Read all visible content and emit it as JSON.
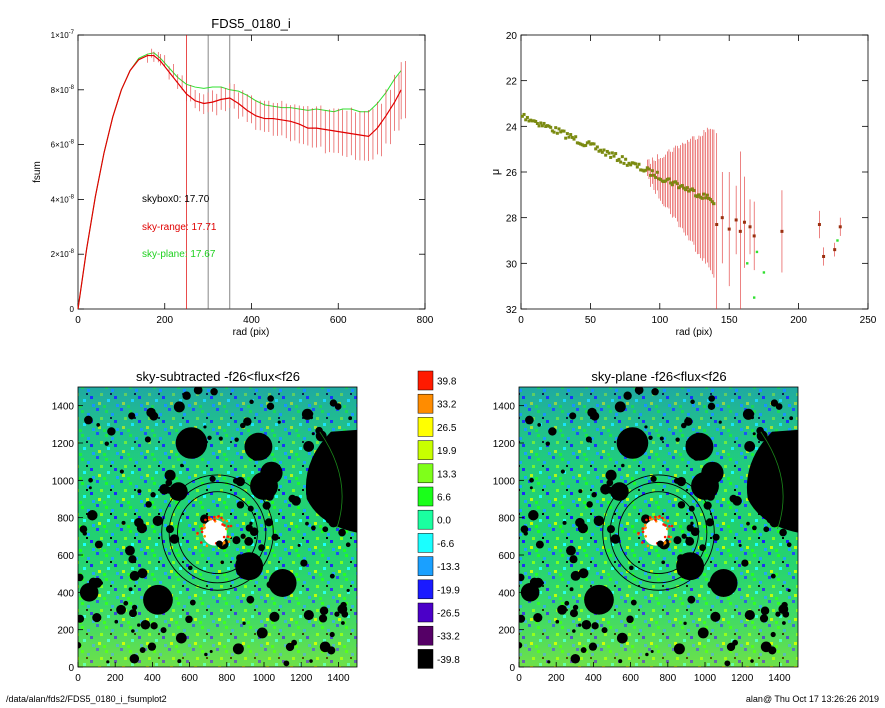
{
  "chart_data": [
    {
      "type": "line",
      "title": "FDS5_0180_i",
      "xlabel": "rad (pix)",
      "ylabel": "fsum",
      "xlim": [
        0,
        800
      ],
      "ylim": [
        0,
        1e-07
      ],
      "x_ticks": [
        "0",
        "200",
        "400",
        "600",
        "800"
      ],
      "y_ticks": [
        {
          "value": 0,
          "mant": "0",
          "exp": ""
        },
        {
          "value": 2e-08,
          "mant": "2×10",
          "exp": "-8"
        },
        {
          "value": 4e-08,
          "mant": "4×10",
          "exp": "-8"
        },
        {
          "value": 6e-08,
          "mant": "6×10",
          "exp": "-8"
        },
        {
          "value": 8e-08,
          "mant": "8×10",
          "exp": "-8"
        },
        {
          "value": 1e-07,
          "mant": "1×10",
          "exp": "-7"
        }
      ],
      "vlines": [
        250,
        300,
        350
      ],
      "annotations": [
        {
          "text": "skybox0: 17.70",
          "color": "#000000"
        },
        {
          "text": "sky-range: 17.71",
          "color": "#e00000"
        },
        {
          "text": "sky-plane: 17.67",
          "color": "#20d020"
        }
      ],
      "series": [
        {
          "color": "#30e030",
          "x": [
            0,
            20,
            40,
            60,
            80,
            100,
            120,
            140,
            160,
            175,
            190,
            210,
            230,
            250,
            270,
            290,
            310,
            330,
            350,
            370,
            390,
            410,
            430,
            450,
            470,
            490,
            510,
            530,
            550,
            570,
            590,
            610,
            630,
            650,
            670,
            690,
            710,
            730,
            745
          ],
          "y": [
            0,
            2.2e-08,
            4.1e-08,
            5.7e-08,
            7e-08,
            8e-08,
            8.7e-08,
            9.15e-08,
            9.3e-08,
            9.35e-08,
            9.15e-08,
            8.8e-08,
            8.45e-08,
            8.2e-08,
            8.1e-08,
            8.05e-08,
            8.1e-08,
            8.1e-08,
            8e-08,
            7.95e-08,
            7.8e-08,
            7.6e-08,
            7.45e-08,
            7.4e-08,
            7.35e-08,
            7.35e-08,
            7.3e-08,
            7.25e-08,
            7.3e-08,
            7.25e-08,
            7.2e-08,
            7.3e-08,
            7.3e-08,
            7.2e-08,
            7.2e-08,
            7.5e-08,
            7.9e-08,
            8.4e-08,
            8.7e-08
          ]
        },
        {
          "color": "#e00000",
          "x": [
            0,
            20,
            40,
            60,
            80,
            100,
            120,
            140,
            160,
            175,
            190,
            210,
            230,
            250,
            270,
            290,
            310,
            330,
            350,
            370,
            390,
            410,
            430,
            450,
            470,
            490,
            510,
            530,
            550,
            570,
            590,
            610,
            630,
            650,
            670,
            690,
            710,
            730,
            745
          ],
          "y": [
            0,
            2.2e-08,
            4.1e-08,
            5.7e-08,
            7e-08,
            8e-08,
            8.7e-08,
            9.1e-08,
            9.25e-08,
            9.25e-08,
            9.05e-08,
            8.65e-08,
            8.25e-08,
            7.85e-08,
            7.6e-08,
            7.5e-08,
            7.55e-08,
            7.65e-08,
            7.7e-08,
            7.5e-08,
            7.25e-08,
            7.05e-08,
            6.95e-08,
            6.95e-08,
            6.9e-08,
            6.85e-08,
            6.75e-08,
            6.6e-08,
            6.6e-08,
            6.55e-08,
            6.5e-08,
            6.45e-08,
            6.4e-08,
            6.35e-08,
            6.3e-08,
            6.6e-08,
            7.05e-08,
            7.55e-08,
            8e-08
          ]
        }
      ]
    },
    {
      "type": "scatter",
      "title": "",
      "xlabel": "rad (pix)",
      "ylabel": "μ",
      "xlim": [
        0,
        250
      ],
      "ylim": [
        32,
        20
      ],
      "x_ticks": [
        "0",
        "50",
        "100",
        "150",
        "200",
        "250"
      ],
      "y_ticks": [
        "20",
        "22",
        "24",
        "26",
        "28",
        "30",
        "32"
      ]
    },
    {
      "type": "heatmap",
      "title": "sky-subtracted -f26<flux<f26",
      "xlim": [
        0,
        1500
      ],
      "ylim": [
        0,
        1500
      ],
      "x_ticks": [
        "0",
        "200",
        "400",
        "600",
        "800",
        "1000",
        "1200",
        "1400"
      ],
      "y_ticks": [
        "0",
        "200",
        "400",
        "600",
        "800",
        "1000",
        "1200",
        "1400"
      ]
    },
    {
      "type": "heatmap",
      "title": "sky-plane -f26<flux<f26",
      "xlim": [
        0,
        1500
      ],
      "ylim": [
        0,
        1500
      ],
      "x_ticks": [
        "0",
        "200",
        "400",
        "600",
        "800",
        "1000",
        "1200",
        "1400"
      ],
      "y_ticks": [
        "0",
        "200",
        "400",
        "600",
        "800",
        "1000",
        "1200",
        "1400"
      ]
    }
  ],
  "colorbar": {
    "levels": [
      {
        "label": "39.8",
        "color": "#ff1a00"
      },
      {
        "label": "33.2",
        "color": "#ff8c00"
      },
      {
        "label": "26.5",
        "color": "#ffff00"
      },
      {
        "label": "19.9",
        "color": "#c8ff00"
      },
      {
        "label": "13.3",
        "color": "#7fff1a"
      },
      {
        "label": "6.6",
        "color": "#1aff1a"
      },
      {
        "label": "0.0",
        "color": "#1affa0"
      },
      {
        "label": "-6.6",
        "color": "#1affff"
      },
      {
        "label": "-13.3",
        "color": "#1aa0ff"
      },
      {
        "label": "-19.9",
        "color": "#1a1aff"
      },
      {
        "label": "-26.5",
        "color": "#4b00c8"
      },
      {
        "label": "-33.2",
        "color": "#550066"
      },
      {
        "label": "-39.8",
        "color": "#000000"
      }
    ]
  },
  "footer": {
    "left": "/data/alan/fds2/FDS5_0180_i_fsumplot2",
    "right": "alan@  Thu Oct 17 13:26:26 2019"
  }
}
